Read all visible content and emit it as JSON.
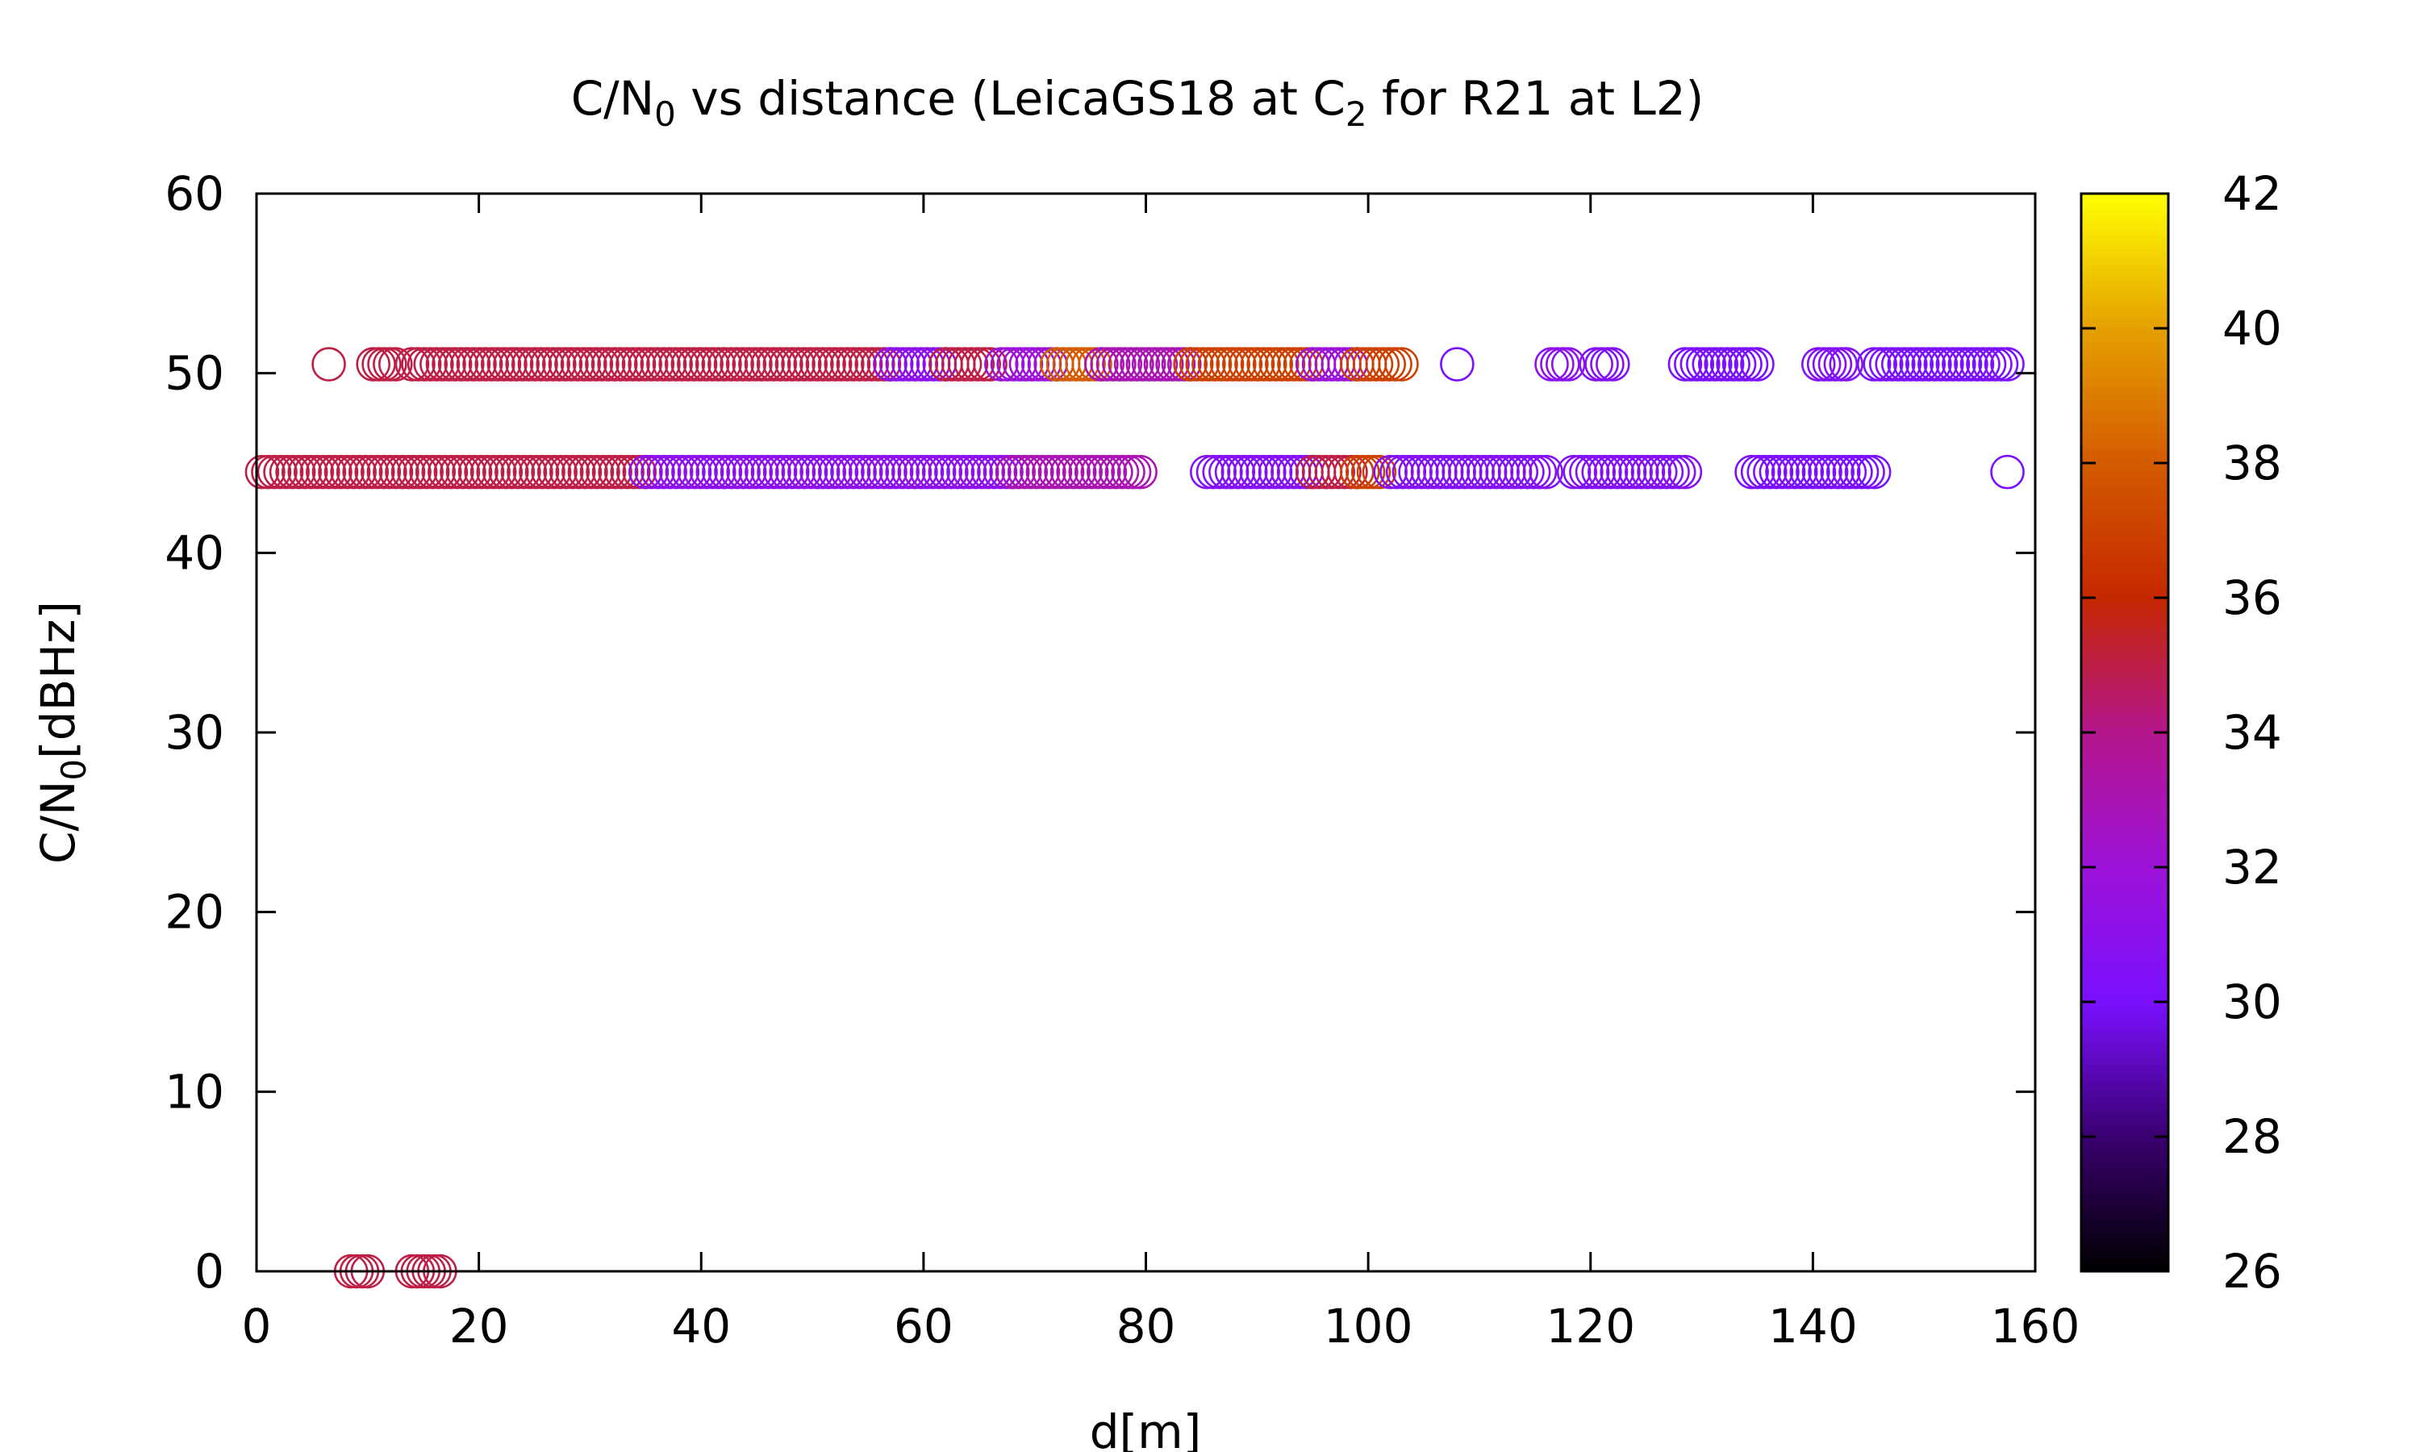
{
  "chart_data": {
    "type": "scatter",
    "title": {
      "prefix": "C/N",
      "sub": "0",
      "middle": " vs distance (LeicaGS18 at C",
      "sub2": "2",
      "suffix": " for R21 at L2)"
    },
    "xlabel": "d[m]",
    "ylabel": {
      "prefix": "C/N",
      "sub": "0",
      "suffix": "[dBHz]"
    },
    "xlim": [
      0,
      160
    ],
    "ylim": [
      0,
      60
    ],
    "xticks": [
      "0",
      "20",
      "40",
      "60",
      "80",
      "100",
      "120",
      "140",
      "160"
    ],
    "yticks": [
      "0",
      "10",
      "20",
      "30",
      "40",
      "50",
      "60"
    ],
    "colorbar": {
      "range": [
        26,
        42
      ],
      "ticks": [
        "26",
        "28",
        "30",
        "32",
        "34",
        "36",
        "38",
        "40",
        "42"
      ],
      "palette": [
        "#000000",
        "#3a0070",
        "#7a10ff",
        "#9d12d8",
        "#b5168c",
        "#c52800",
        "#d45a00",
        "#e5a000",
        "#ffff00"
      ]
    },
    "marker": "open-circle",
    "grid": false,
    "legend": "none",
    "segments": [
      {
        "y": 50.5,
        "x_start": 6.5,
        "x_end": 6.5,
        "color_value": 35
      },
      {
        "y": 50.5,
        "x_start": 10.5,
        "x_end": 12.5,
        "color_value": 35
      },
      {
        "y": 50.5,
        "x_start": 14,
        "x_end": 57,
        "color_value": 35
      },
      {
        "y": 50.5,
        "x_start": 57,
        "x_end": 62,
        "color_value": 31
      },
      {
        "y": 50.5,
        "x_start": 62,
        "x_end": 66,
        "color_value": 35
      },
      {
        "y": 50.5,
        "x_start": 67,
        "x_end": 72,
        "color_value": 32
      },
      {
        "y": 50.5,
        "x_start": 72,
        "x_end": 76,
        "color_value": 38
      },
      {
        "y": 50.5,
        "x_start": 76,
        "x_end": 84,
        "color_value": 33
      },
      {
        "y": 50.5,
        "x_start": 84,
        "x_end": 95,
        "color_value": 37
      },
      {
        "y": 50.5,
        "x_start": 95,
        "x_end": 99,
        "color_value": 32
      },
      {
        "y": 50.5,
        "x_start": 99,
        "x_end": 103,
        "color_value": 37
      },
      {
        "y": 50.5,
        "x_start": 108,
        "x_end": 108,
        "color_value": 30
      },
      {
        "y": 50.5,
        "x_start": 116.5,
        "x_end": 118,
        "color_value": 31
      },
      {
        "y": 50.5,
        "x_start": 120.5,
        "x_end": 122,
        "color_value": 30.5
      },
      {
        "y": 50.5,
        "x_start": 128.5,
        "x_end": 135,
        "color_value": 30
      },
      {
        "y": 50.5,
        "x_start": 140.5,
        "x_end": 143,
        "color_value": 30.5
      },
      {
        "y": 50.5,
        "x_start": 145.5,
        "x_end": 157.5,
        "color_value": 30
      },
      {
        "y": 44.5,
        "x_start": 0.5,
        "x_end": 35,
        "color_value": 35
      },
      {
        "y": 44.5,
        "x_start": 35,
        "x_end": 68,
        "color_value": 31
      },
      {
        "y": 44.5,
        "x_start": 68,
        "x_end": 79.5,
        "color_value": 33
      },
      {
        "y": 44.5,
        "x_start": 85.5,
        "x_end": 95,
        "color_value": 30.5
      },
      {
        "y": 44.5,
        "x_start": 95,
        "x_end": 99,
        "color_value": 35
      },
      {
        "y": 44.5,
        "x_start": 99,
        "x_end": 101,
        "color_value": 37
      },
      {
        "y": 44.5,
        "x_start": 102,
        "x_end": 116,
        "color_value": 30.5
      },
      {
        "y": 44.5,
        "x_start": 118.5,
        "x_end": 128.5,
        "color_value": 30.5
      },
      {
        "y": 44.5,
        "x_start": 134.5,
        "x_end": 145.5,
        "color_value": 30
      },
      {
        "y": 44.5,
        "x_start": 157.5,
        "x_end": 157.5,
        "color_value": 30
      },
      {
        "y": 0,
        "x_start": 8.5,
        "x_end": 10,
        "color_value": 35
      },
      {
        "y": 0,
        "x_start": 14,
        "x_end": 16.5,
        "color_value": 35
      }
    ]
  }
}
